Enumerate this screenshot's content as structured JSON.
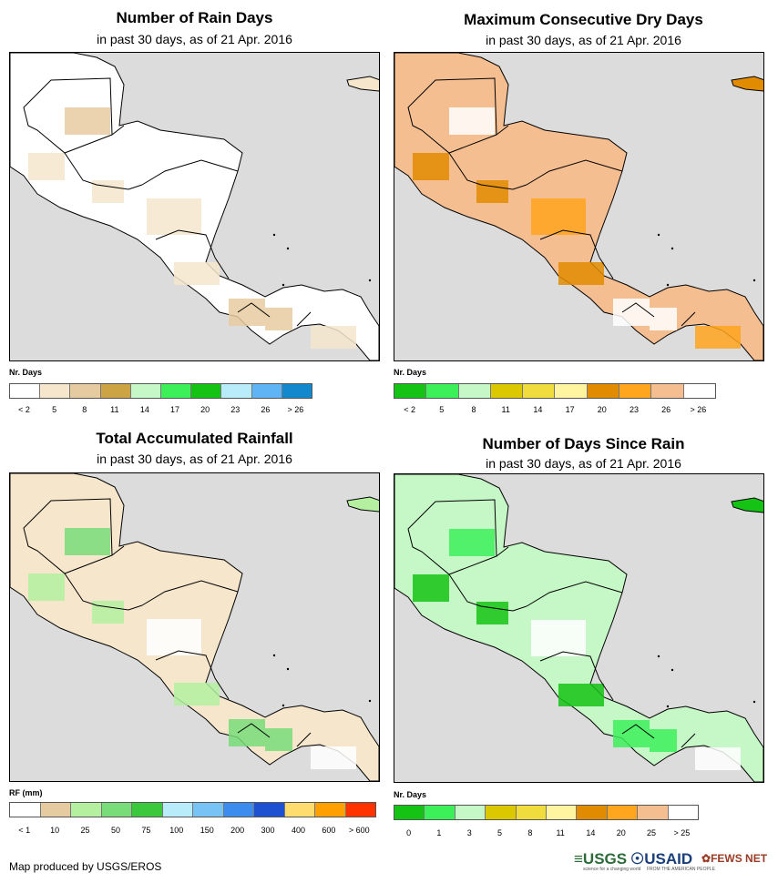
{
  "panels": [
    {
      "title": "Number of Rain Days",
      "subtitle": "in past 30 days, as of 21 Apr. 2016",
      "legend_title": "Nr. Days",
      "legend_colors": [
        "#ffffff",
        "#f5e6cc",
        "#e6cba0",
        "#cda443",
        "#c6f7c6",
        "#3cf05a",
        "#14c314",
        "#b9ecfa",
        "#5fb4f5",
        "#1488cd"
      ],
      "legend_labels": [
        "< 2",
        "5",
        "8",
        "11",
        "14",
        "17",
        "20",
        "23",
        "26",
        "> 26"
      ],
      "land_fill": "#ffffff",
      "patch_colors": [
        "#f5e6cc",
        "#e6cba0",
        "#f5e6cc"
      ]
    },
    {
      "title": "Maximum Consecutive Dry Days",
      "subtitle": "in past 30 days, as of 21 Apr. 2016",
      "legend_title": "Nr. Days",
      "legend_colors": [
        "#14c314",
        "#3cf05a",
        "#c6f7c6",
        "#dcc800",
        "#f0dc3c",
        "#fff5a0",
        "#e18c00",
        "#ffa51e",
        "#f5be91",
        "#ffffff"
      ],
      "legend_labels": [
        "< 2",
        "5",
        "8",
        "11",
        "14",
        "17",
        "20",
        "23",
        "26",
        "> 26"
      ],
      "land_fill": "#f5be91",
      "patch_colors": [
        "#e18c00",
        "#ffffff",
        "#ffa51e"
      ]
    },
    {
      "title": "Total Accumulated Rainfall",
      "subtitle": "in past 30 days, as of 21 Apr. 2016",
      "legend_title": "RF (mm)",
      "legend_colors": [
        "#ffffff",
        "#e6cba0",
        "#b4f0a0",
        "#78dc78",
        "#3cc83c",
        "#b9ecfa",
        "#78c3f5",
        "#3c8cf0",
        "#1e50d2",
        "#ffdc6e",
        "#ffa000",
        "#ff3200"
      ],
      "legend_labels": [
        "< 1",
        "10",
        "25",
        "50",
        "75",
        "100",
        "150",
        "200",
        "300",
        "400",
        "600",
        "> 600"
      ],
      "land_fill": "#f5e6cc",
      "patch_colors": [
        "#b4f0a0",
        "#78dc78",
        "#ffffff"
      ]
    },
    {
      "title": "Number of Days Since Rain",
      "subtitle": "in past 30 days, as of 21 Apr. 2016",
      "legend_title": "Nr. Days",
      "legend_colors": [
        "#14c314",
        "#3cf05a",
        "#c6f7c6",
        "#dcc800",
        "#f0dc3c",
        "#fff5a0",
        "#e18c00",
        "#ffa51e",
        "#f5be91",
        "#ffffff"
      ],
      "legend_labels": [
        "0",
        "1",
        "3",
        "5",
        "8",
        "11",
        "14",
        "20",
        "25",
        "> 25"
      ],
      "land_fill": "#c6f7c6",
      "patch_colors": [
        "#14c314",
        "#3cf05a",
        "#ffffff"
      ]
    }
  ],
  "credit": "Map produced by USGS/EROS",
  "logos": {
    "usgs": "USGS",
    "usaid": "USAID",
    "fews": "FEWS NET",
    "usgs_tag": "science for a changing world",
    "usaid_tag": "FROM THE AMERICAN PEOPLE"
  }
}
